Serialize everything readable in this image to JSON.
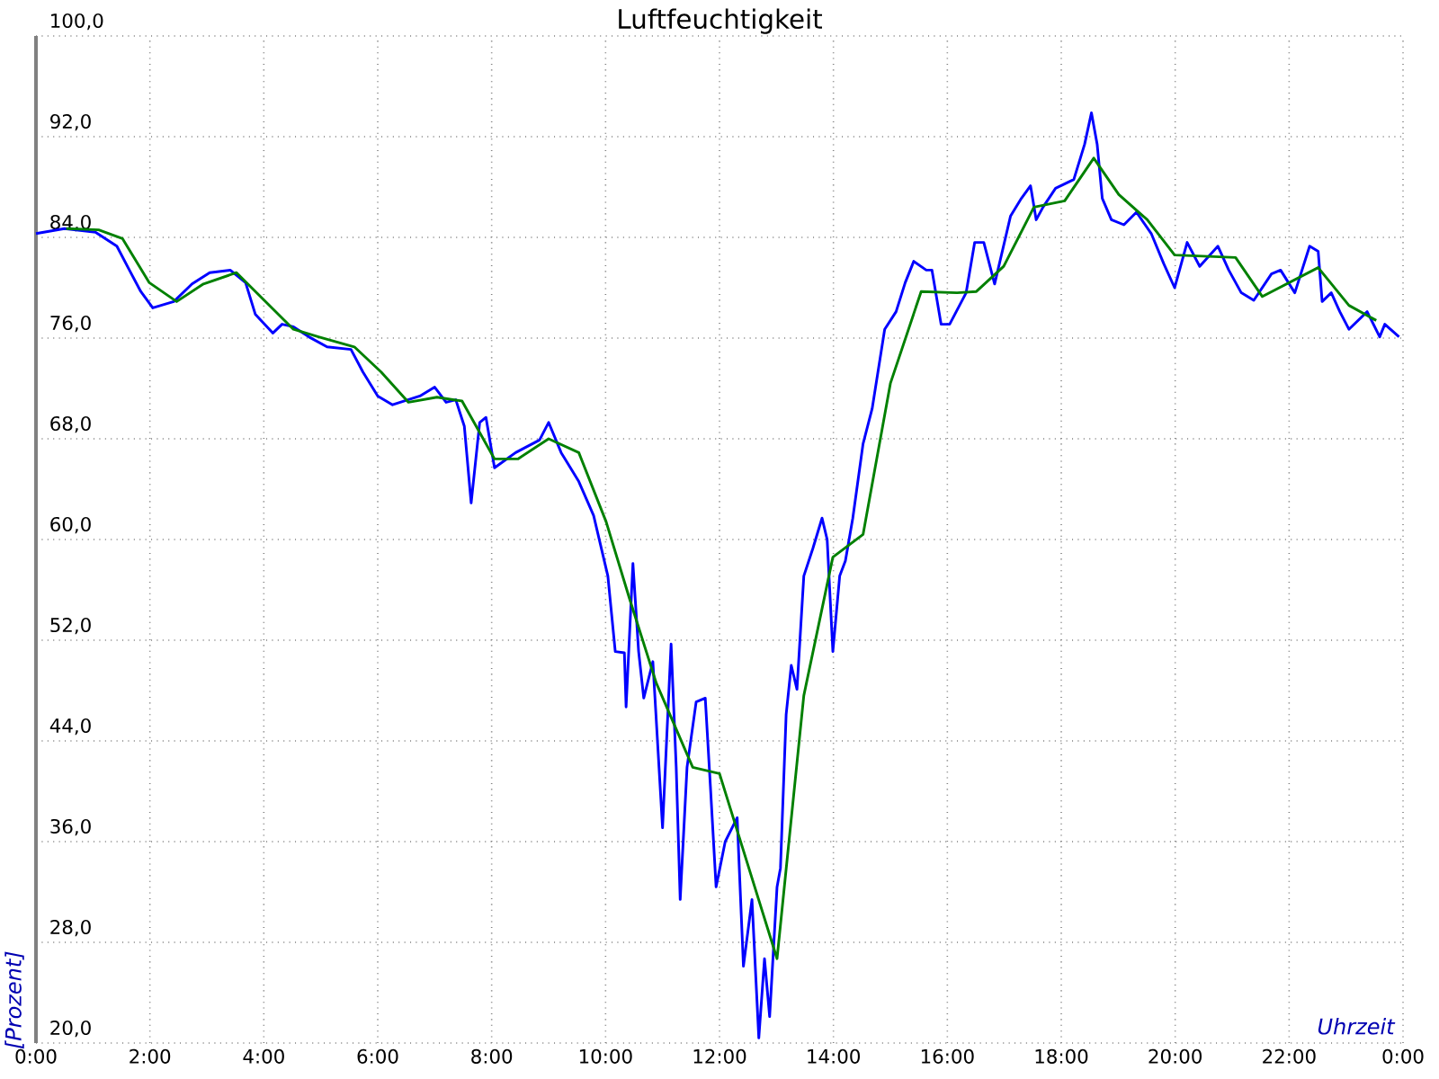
{
  "chart_data": {
    "type": "line",
    "title": "Luftfeuchtigkeit",
    "xlabel": "Uhrzeit",
    "ylabel": "[Prozent]",
    "xlim": [
      0,
      24
    ],
    "ylim": [
      20,
      100
    ],
    "xticks": [
      {
        "value": 0,
        "label": "0:00"
      },
      {
        "value": 2,
        "label": "2:00"
      },
      {
        "value": 4,
        "label": "4:00"
      },
      {
        "value": 6,
        "label": "6:00"
      },
      {
        "value": 8,
        "label": "8:00"
      },
      {
        "value": 10,
        "label": "10:00"
      },
      {
        "value": 12,
        "label": "12:00"
      },
      {
        "value": 14,
        "label": "14:00"
      },
      {
        "value": 16,
        "label": "16:00"
      },
      {
        "value": 18,
        "label": "18:00"
      },
      {
        "value": 20,
        "label": "20:00"
      },
      {
        "value": 22,
        "label": "22:00"
      },
      {
        "value": 24,
        "label": "0:00"
      }
    ],
    "yticks": [
      {
        "value": 20,
        "label": "20,0"
      },
      {
        "value": 28,
        "label": "28,0"
      },
      {
        "value": 36,
        "label": "36,0"
      },
      {
        "value": 44,
        "label": "44,0"
      },
      {
        "value": 52,
        "label": "52,0"
      },
      {
        "value": 60,
        "label": "60,0"
      },
      {
        "value": 68,
        "label": "68,0"
      },
      {
        "value": 76,
        "label": "76,0"
      },
      {
        "value": 84,
        "label": "84,0"
      },
      {
        "value": 92,
        "label": "92,0"
      },
      {
        "value": 100,
        "label": "100,0"
      }
    ],
    "grid": true,
    "series": [
      {
        "color": "#0000ff",
        "x": [
          0,
          0.5,
          1.05,
          1.42,
          1.64,
          1.84,
          2.05,
          2.42,
          2.74,
          3.05,
          3.41,
          3.68,
          3.85,
          4.16,
          4.32,
          4.52,
          4.79,
          5.11,
          5.53,
          5.74,
          6.0,
          6.26,
          6.74,
          7.0,
          7.2,
          7.37,
          7.52,
          7.64,
          7.79,
          7.9,
          8.05,
          8.42,
          8.84,
          9.0,
          9.22,
          9.53,
          9.79,
          10.04,
          10.17,
          10.33,
          10.36,
          10.48,
          10.58,
          10.67,
          10.83,
          11.0,
          11.15,
          11.24,
          11.31,
          11.43,
          11.59,
          11.75,
          11.84,
          11.94,
          12.1,
          12.31,
          12.42,
          12.57,
          12.69,
          12.79,
          12.88,
          13.01,
          13.07,
          13.17,
          13.26,
          13.36,
          13.48,
          13.64,
          13.8,
          13.89,
          13.99,
          14.11,
          14.21,
          14.34,
          14.52,
          14.68,
          14.9,
          15.1,
          15.26,
          15.41,
          15.63,
          15.73,
          15.89,
          16.04,
          16.33,
          16.48,
          16.64,
          16.83,
          17.11,
          17.3,
          17.46,
          17.56,
          17.68,
          17.9,
          18.22,
          18.41,
          18.53,
          18.63,
          18.72,
          18.88,
          19.1,
          19.32,
          19.58,
          19.8,
          19.99,
          20.21,
          20.43,
          20.75,
          20.94,
          21.16,
          21.38,
          21.69,
          21.85,
          22.1,
          22.36,
          22.51,
          22.58,
          22.74,
          22.89,
          23.05,
          23.37,
          23.59,
          23.68,
          23.93
        ],
        "values": [
          84.3,
          84.7,
          84.4,
          83.3,
          81.4,
          79.7,
          78.4,
          78.9,
          80.3,
          81.2,
          81.4,
          80.4,
          77.9,
          76.4,
          77.1,
          76.9,
          76.1,
          75.3,
          75.1,
          73.3,
          71.4,
          70.7,
          71.4,
          72.1,
          70.9,
          71.1,
          69.0,
          62.9,
          69.3,
          69.7,
          65.7,
          66.9,
          67.9,
          69.3,
          66.9,
          64.6,
          61.9,
          57.1,
          51.1,
          51.0,
          46.7,
          58.1,
          51.1,
          47.4,
          50.3,
          37.1,
          51.7,
          41.9,
          31.4,
          41.9,
          47.1,
          47.4,
          40.4,
          32.4,
          36.0,
          37.9,
          26.1,
          31.4,
          20.4,
          26.7,
          22.1,
          32.4,
          33.9,
          46.1,
          50.0,
          48.1,
          57.1,
          59.3,
          61.7,
          60.0,
          51.1,
          57.1,
          58.3,
          61.7,
          67.6,
          70.4,
          76.7,
          78.1,
          80.4,
          82.1,
          81.4,
          81.4,
          77.1,
          77.1,
          79.6,
          83.6,
          83.6,
          80.3,
          85.7,
          87.1,
          88.1,
          85.4,
          86.4,
          87.9,
          88.6,
          91.4,
          93.9,
          91.4,
          87.1,
          85.4,
          85.0,
          86.0,
          84.3,
          81.9,
          80.0,
          83.6,
          81.7,
          83.3,
          81.4,
          79.6,
          79.0,
          81.1,
          81.4,
          79.6,
          83.3,
          82.9,
          78.9,
          79.6,
          78.1,
          76.7,
          78.1,
          76.1,
          77.1,
          76.1
        ]
      },
      {
        "color": "#008000",
        "x": [
          0.53,
          1.1,
          1.52,
          1.99,
          2.47,
          2.94,
          3.52,
          4.52,
          4.96,
          5.59,
          6.06,
          6.54,
          7.04,
          7.48,
          8.05,
          8.46,
          9.0,
          9.53,
          10.01,
          10.42,
          10.89,
          11.53,
          12.0,
          13.01,
          13.48,
          13.99,
          14.52,
          15.0,
          15.54,
          16.17,
          16.51,
          16.99,
          17.52,
          18.06,
          18.57,
          19.01,
          19.51,
          19.99,
          21.06,
          21.53,
          22.51,
          23.05,
          23.53
        ],
        "values": [
          84.7,
          84.6,
          83.9,
          80.4,
          78.9,
          80.3,
          81.2,
          76.7,
          76.1,
          75.3,
          73.3,
          70.9,
          71.3,
          71.0,
          66.4,
          66.4,
          68.0,
          66.9,
          61.4,
          55.3,
          48.6,
          41.9,
          41.4,
          26.7,
          47.6,
          58.6,
          60.4,
          72.4,
          79.7,
          79.6,
          79.7,
          81.7,
          86.4,
          86.9,
          90.3,
          87.4,
          85.4,
          82.6,
          82.4,
          79.3,
          81.6,
          78.6,
          77.4
        ]
      }
    ]
  }
}
